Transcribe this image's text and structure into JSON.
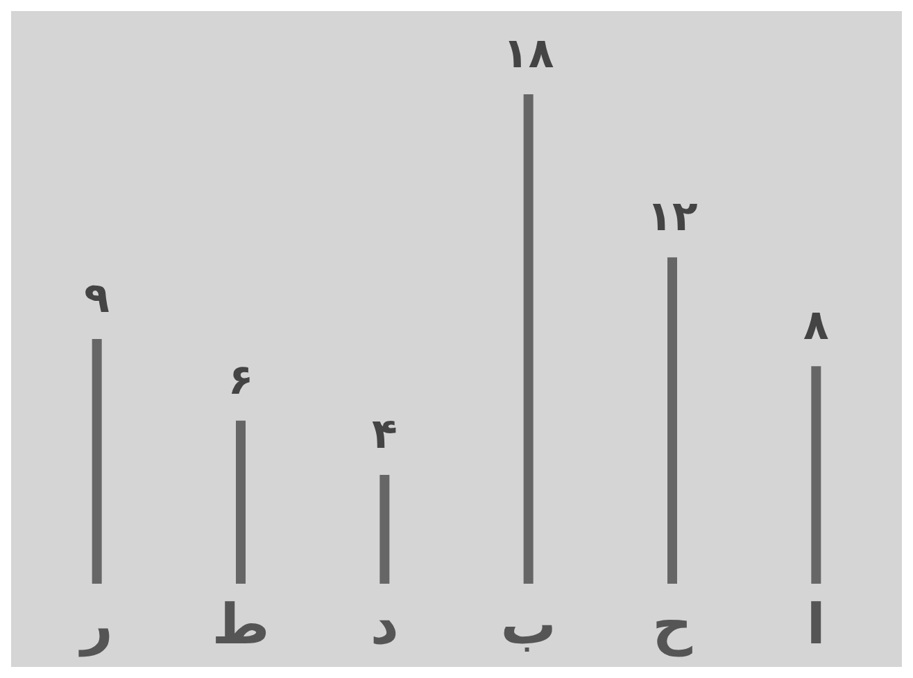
{
  "chart_data": {
    "type": "bar",
    "categories": [
      "ر",
      "ط",
      "د",
      "ب",
      "ح",
      "ا"
    ],
    "values": [
      9,
      6,
      4,
      18,
      12,
      8
    ],
    "value_labels": [
      "۹",
      "۶",
      "۴",
      "۱۸",
      "۱۲",
      "۸"
    ],
    "color": "#666666",
    "grid": false
  }
}
